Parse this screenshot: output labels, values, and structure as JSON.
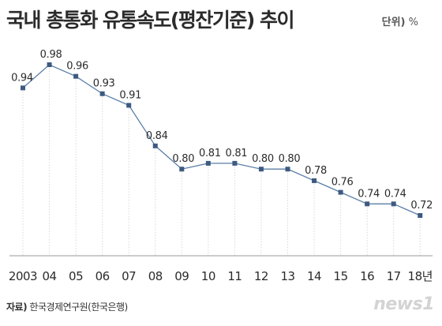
{
  "header": {
    "title": "국내 총통화 유통속도(평잔기준) 추이",
    "unit_label": "단위)",
    "unit_value": "%"
  },
  "footer": {
    "source_label": "자료)",
    "source_text": "한국경제연구원(한국은행)",
    "logo": "news1"
  },
  "colors": {
    "line": "#5b7fa8",
    "marker": "#3d5a80",
    "grid": "#d8d8d8",
    "text": "#2b2b2b"
  },
  "chart_data": {
    "type": "line",
    "title": "국내 총통화 유통속도(평잔기준) 추이",
    "xlabel": "",
    "ylabel": "",
    "unit": "%",
    "categories": [
      "2003",
      "04",
      "05",
      "06",
      "07",
      "08",
      "09",
      "10",
      "11",
      "12",
      "13",
      "14",
      "15",
      "16",
      "17",
      "18년"
    ],
    "series": [
      {
        "values": [
          0.94,
          0.98,
          0.96,
          0.93,
          0.91,
          0.84,
          0.8,
          0.81,
          0.81,
          0.8,
          0.8,
          0.78,
          0.76,
          0.74,
          0.74,
          0.72
        ],
        "labels": [
          "0.94",
          "0.98",
          "0.96",
          "0.93",
          "0.91",
          "0.84",
          "0.80",
          "0.81",
          "0.81",
          "0.80",
          "0.80",
          "0.78",
          "0.76",
          "0.74",
          "0.74",
          "0.72"
        ]
      }
    ],
    "grid": "vertical-dotted",
    "legend": "none"
  }
}
